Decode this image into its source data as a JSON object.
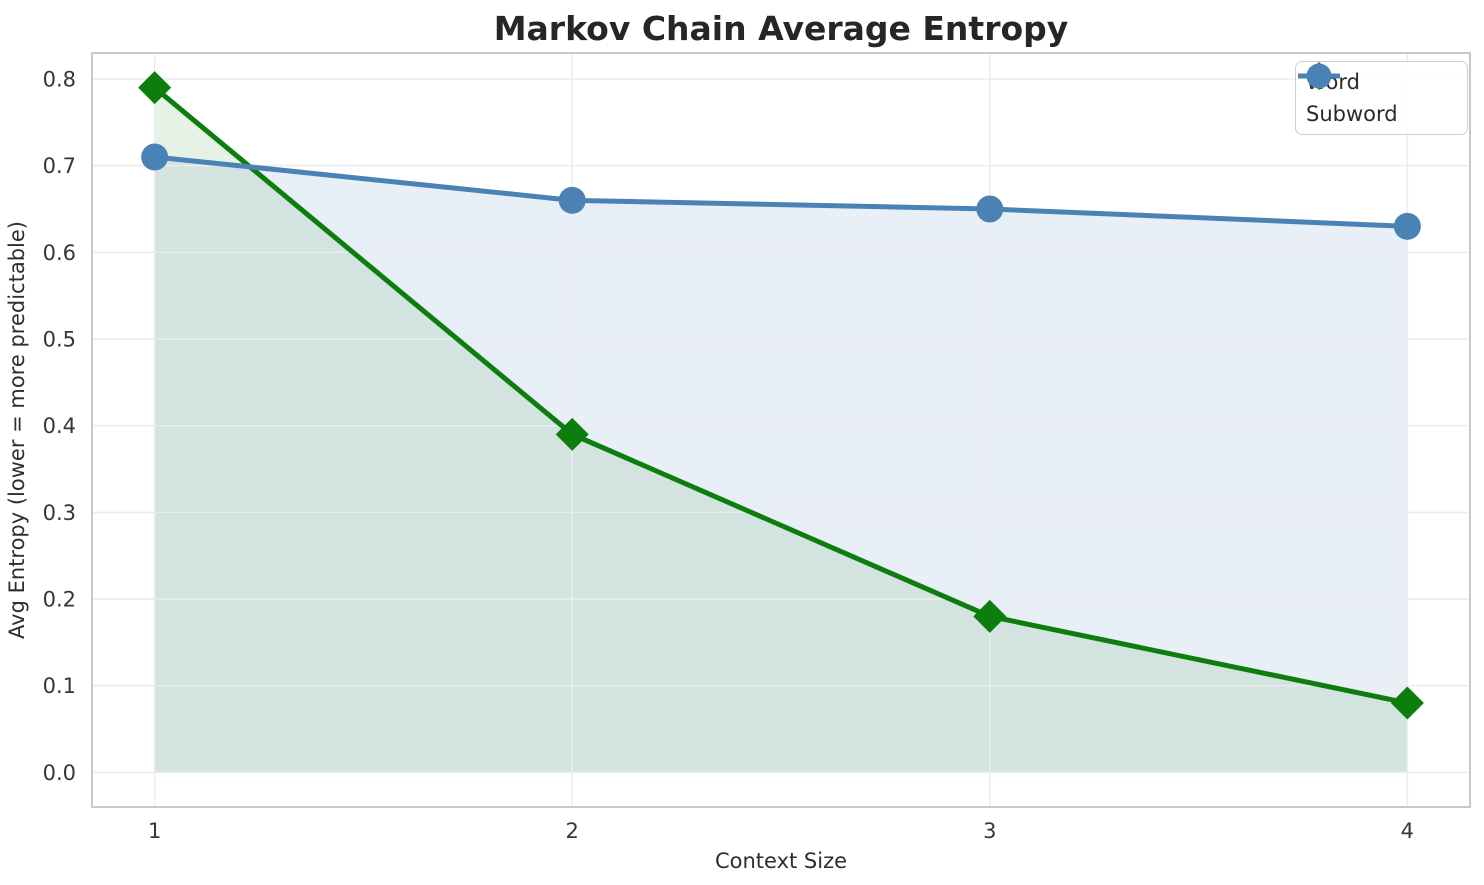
{
  "chart_data": {
    "type": "line",
    "title": "Markov Chain Average Entropy",
    "xlabel": "Context Size",
    "ylabel": "Avg Entropy (lower = more predictable)",
    "x": [
      1,
      2,
      3,
      4
    ],
    "series": [
      {
        "name": "Word",
        "color": "#0d7d0d",
        "marker": "diamond",
        "values": [
          0.79,
          0.39,
          0.18,
          0.08
        ],
        "fill_opacity": 0.1
      },
      {
        "name": "Subword",
        "color": "#4a82b6",
        "marker": "circle",
        "values": [
          0.71,
          0.66,
          0.65,
          0.63
        ],
        "fill_opacity": 0.13
      }
    ],
    "area_fill": true,
    "xlim": [
      0.85,
      4.15
    ],
    "ylim": [
      -0.04,
      0.83
    ],
    "xticks": [
      1,
      2,
      3,
      4
    ],
    "yticks": [
      0.0,
      0.1,
      0.2,
      0.3,
      0.4,
      0.5,
      0.6,
      0.7,
      0.8
    ],
    "grid": true,
    "legend": {
      "position": "upper-right",
      "labels": [
        "Word",
        "Subword"
      ]
    },
    "style": {
      "background": "#ffffff",
      "grid_color": "#ececec",
      "spine_color": "#c9c9c9",
      "title_color": "#262626",
      "tick_color": "#363636",
      "line_width": 5
    }
  }
}
